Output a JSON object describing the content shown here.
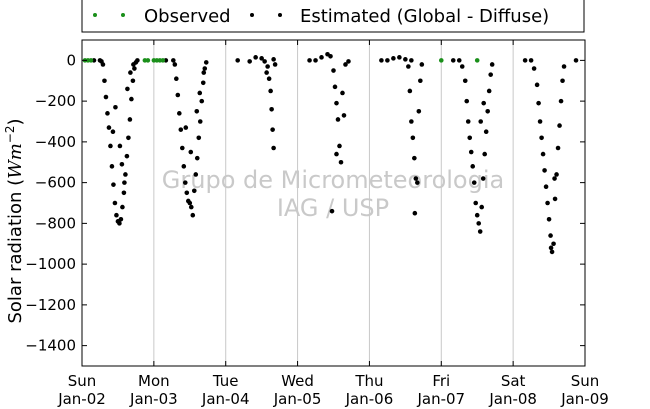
{
  "chart_data": {
    "type": "scatter",
    "title": "",
    "ylabel": "Solar radiation (Wm^-2)",
    "ylabel_parts": {
      "main": "Solar radiation ",
      "open": "(",
      "unit": "Wm",
      "exp": "−2",
      "close": ")"
    },
    "ylim": [
      -1500,
      100
    ],
    "yticks": [
      -1400,
      -1200,
      -1000,
      -800,
      -600,
      -400,
      -200,
      0
    ],
    "xlim": [
      "2000-01-02",
      "2000-01-09"
    ],
    "xticks": [
      {
        "day": "Sun",
        "date": "Jan-02"
      },
      {
        "day": "Mon",
        "date": "Jan-03"
      },
      {
        "day": "Tue",
        "date": "Jan-04"
      },
      {
        "day": "Wed",
        "date": "Jan-05"
      },
      {
        "day": "Thu",
        "date": "Jan-06"
      },
      {
        "day": "Fri",
        "date": "Jan-07"
      },
      {
        "day": "Sat",
        "date": "Jan-08"
      },
      {
        "day": "Sun",
        "date": "Jan-09"
      }
    ],
    "grid": "vertical",
    "legend_position": "top",
    "watermark": [
      "Grupo de Micrometeorologia",
      "IAG / USP"
    ],
    "colors": {
      "observed": "#1a8f1a",
      "estimated": "#000000",
      "grid": "#c8c8c8",
      "watermark": "#c9c9c9"
    },
    "series": [
      {
        "name": "Observed",
        "points": [
          [
            "2000-01-02T01:00",
            0
          ],
          [
            "2000-01-02T02:00",
            0
          ],
          [
            "2000-01-02T03:00",
            0
          ],
          [
            "2000-01-02T21:00",
            0
          ],
          [
            "2000-01-02T22:00",
            0
          ],
          [
            "2000-01-03T00:00",
            0
          ],
          [
            "2000-01-03T01:00",
            0
          ],
          [
            "2000-01-03T02:00",
            0
          ],
          [
            "2000-01-03T03:00",
            0
          ],
          [
            "2000-01-07T00:00",
            0
          ],
          [
            "2000-01-07T12:00",
            0
          ]
        ]
      },
      {
        "name": "Estimated (Global - Diffuse)",
        "points": [
          [
            "2000-01-02T06:00",
            0
          ],
          [
            "2000-01-02T06:30",
            -5
          ],
          [
            "2000-01-02T07:00",
            -20
          ],
          [
            "2000-01-02T07:30",
            -100
          ],
          [
            "2000-01-02T08:00",
            -180
          ],
          [
            "2000-01-02T08:30",
            -260
          ],
          [
            "2000-01-02T09:00",
            -330
          ],
          [
            "2000-01-02T09:30",
            -420
          ],
          [
            "2000-01-02T10:00",
            -520
          ],
          [
            "2000-01-02T10:30",
            -610
          ],
          [
            "2000-01-02T11:00",
            -700
          ],
          [
            "2000-01-02T11:30",
            -760
          ],
          [
            "2000-01-02T12:00",
            -790
          ],
          [
            "2000-01-02T12:30",
            -800
          ],
          [
            "2000-01-02T13:00",
            -780
          ],
          [
            "2000-01-02T13:30",
            -720
          ],
          [
            "2000-01-02T14:00",
            -650
          ],
          [
            "2000-01-02T14:30",
            -560
          ],
          [
            "2000-01-02T15:00",
            -470
          ],
          [
            "2000-01-02T15:30",
            -380
          ],
          [
            "2000-01-02T16:00",
            -290
          ],
          [
            "2000-01-02T16:30",
            -190
          ],
          [
            "2000-01-02T17:00",
            -100
          ],
          [
            "2000-01-02T17:30",
            -40
          ],
          [
            "2000-01-02T18:00",
            -10
          ],
          [
            "2000-01-02T18:30",
            0
          ],
          [
            "2000-01-02T10:20",
            -350
          ],
          [
            "2000-01-02T11:10",
            -230
          ],
          [
            "2000-01-02T12:40",
            -420
          ],
          [
            "2000-01-02T13:20",
            -510
          ],
          [
            "2000-01-02T14:10",
            -600
          ],
          [
            "2000-01-02T15:10",
            -140
          ],
          [
            "2000-01-02T16:10",
            -60
          ],
          [
            "2000-01-02T17:10",
            -20
          ],
          [
            "2000-01-03T06:30",
            0
          ],
          [
            "2000-01-03T07:00",
            -20
          ],
          [
            "2000-01-03T07:30",
            -90
          ],
          [
            "2000-01-03T08:00",
            -170
          ],
          [
            "2000-01-03T08:30",
            -260
          ],
          [
            "2000-01-03T09:00",
            -340
          ],
          [
            "2000-01-03T09:30",
            -430
          ],
          [
            "2000-01-03T10:00",
            -520
          ],
          [
            "2000-01-03T10:30",
            -600
          ],
          [
            "2000-01-03T11:00",
            -650
          ],
          [
            "2000-01-03T11:30",
            -690
          ],
          [
            "2000-01-03T12:00",
            -700
          ],
          [
            "2000-01-03T12:30",
            -720
          ],
          [
            "2000-01-03T13:00",
            -760
          ],
          [
            "2000-01-03T13:30",
            -640
          ],
          [
            "2000-01-03T14:00",
            -560
          ],
          [
            "2000-01-03T14:30",
            -480
          ],
          [
            "2000-01-03T15:00",
            -380
          ],
          [
            "2000-01-03T15:30",
            -300
          ],
          [
            "2000-01-03T16:00",
            -200
          ],
          [
            "2000-01-03T16:30",
            -110
          ],
          [
            "2000-01-03T17:00",
            -40
          ],
          [
            "2000-01-03T17:30",
            -10
          ],
          [
            "2000-01-03T10:40",
            -330
          ],
          [
            "2000-01-03T12:20",
            -450
          ],
          [
            "2000-01-03T14:20",
            -250
          ],
          [
            "2000-01-03T15:20",
            -160
          ],
          [
            "2000-01-03T16:40",
            -60
          ],
          [
            "2000-01-04T08:00",
            -5
          ],
          [
            "2000-01-04T12:00",
            10
          ],
          [
            "2000-01-04T16:00",
            5
          ],
          [
            "2000-01-04T13:00",
            -5
          ],
          [
            "2000-01-04T10:00",
            15
          ],
          [
            "2000-01-04T14:00",
            -30
          ],
          [
            "2000-01-04T14:30",
            -90
          ],
          [
            "2000-01-04T15:00",
            -150
          ],
          [
            "2000-01-04T15:20",
            -240
          ],
          [
            "2000-01-04T15:40",
            -340
          ],
          [
            "2000-01-04T16:00",
            -430
          ],
          [
            "2000-01-04T13:40",
            -60
          ],
          [
            "2000-01-04T16:30",
            -20
          ],
          [
            "2000-01-05T06:00",
            0
          ],
          [
            "2000-01-05T08:00",
            15
          ],
          [
            "2000-01-05T10:00",
            30
          ],
          [
            "2000-01-05T11:00",
            20
          ],
          [
            "2000-01-05T12:00",
            -50
          ],
          [
            "2000-01-05T12:30",
            -130
          ],
          [
            "2000-01-05T13:00",
            -210
          ],
          [
            "2000-01-05T13:30",
            -290
          ],
          [
            "2000-01-05T14:00",
            -420
          ],
          [
            "2000-01-05T13:00",
            -460
          ],
          [
            "2000-01-05T14:30",
            -500
          ],
          [
            "2000-01-05T15:00",
            -160
          ],
          [
            "2000-01-05T11:30",
            -740
          ],
          [
            "2000-01-05T15:30",
            -270
          ],
          [
            "2000-01-05T16:00",
            -20
          ],
          [
            "2000-01-05T17:00",
            -5
          ],
          [
            "2000-01-06T06:00",
            0
          ],
          [
            "2000-01-06T08:00",
            10
          ],
          [
            "2000-01-06T10:00",
            15
          ],
          [
            "2000-01-06T12:00",
            5
          ],
          [
            "2000-01-06T14:00",
            0
          ],
          [
            "2000-01-06T13:00",
            -30
          ],
          [
            "2000-01-06T13:30",
            -150
          ],
          [
            "2000-01-06T14:00",
            -300
          ],
          [
            "2000-01-06T14:30",
            -380
          ],
          [
            "2000-01-06T15:00",
            -480
          ],
          [
            "2000-01-06T15:30",
            -580
          ],
          [
            "2000-01-06T16:00",
            -600
          ],
          [
            "2000-01-06T15:10",
            -750
          ],
          [
            "2000-01-06T16:30",
            -250
          ],
          [
            "2000-01-06T17:00",
            -100
          ],
          [
            "2000-01-06T17:30",
            -20
          ],
          [
            "2000-01-07T06:00",
            0
          ],
          [
            "2000-01-07T07:00",
            -30
          ],
          [
            "2000-01-07T08:00",
            -100
          ],
          [
            "2000-01-07T08:30",
            -200
          ],
          [
            "2000-01-07T09:00",
            -300
          ],
          [
            "2000-01-07T09:30",
            -380
          ],
          [
            "2000-01-07T10:00",
            -450
          ],
          [
            "2000-01-07T10:30",
            -520
          ],
          [
            "2000-01-07T11:00",
            -600
          ],
          [
            "2000-01-07T11:30",
            -700
          ],
          [
            "2000-01-07T12:00",
            -760
          ],
          [
            "2000-01-07T12:30",
            -800
          ],
          [
            "2000-01-07T13:00",
            -840
          ],
          [
            "2000-01-07T13:30",
            -720
          ],
          [
            "2000-01-07T14:00",
            -580
          ],
          [
            "2000-01-07T14:30",
            -460
          ],
          [
            "2000-01-07T15:00",
            -350
          ],
          [
            "2000-01-07T15:30",
            -250
          ],
          [
            "2000-01-07T16:00",
            -150
          ],
          [
            "2000-01-07T16:30",
            -70
          ],
          [
            "2000-01-07T17:00",
            -20
          ],
          [
            "2000-01-07T13:10",
            -300
          ],
          [
            "2000-01-07T14:10",
            -210
          ],
          [
            "2000-01-08T06:00",
            0
          ],
          [
            "2000-01-08T07:00",
            -40
          ],
          [
            "2000-01-08T08:00",
            -120
          ],
          [
            "2000-01-08T08:30",
            -210
          ],
          [
            "2000-01-08T09:00",
            -300
          ],
          [
            "2000-01-08T09:30",
            -380
          ],
          [
            "2000-01-08T10:00",
            -460
          ],
          [
            "2000-01-08T10:30",
            -540
          ],
          [
            "2000-01-08T11:00",
            -620
          ],
          [
            "2000-01-08T11:30",
            -700
          ],
          [
            "2000-01-08T12:00",
            -780
          ],
          [
            "2000-01-08T12:30",
            -860
          ],
          [
            "2000-01-08T13:00",
            -940
          ],
          [
            "2000-01-08T13:30",
            -900
          ],
          [
            "2000-01-08T14:00",
            -680
          ],
          [
            "2000-01-08T14:30",
            -560
          ],
          [
            "2000-01-08T15:00",
            -430
          ],
          [
            "2000-01-08T15:30",
            -320
          ],
          [
            "2000-01-08T16:00",
            -200
          ],
          [
            "2000-01-08T16:30",
            -100
          ],
          [
            "2000-01-08T17:00",
            -30
          ],
          [
            "2000-01-08T12:40",
            -920
          ],
          [
            "2000-01-08T13:50",
            -580
          ],
          [
            "2000-01-02T04:00",
            0
          ],
          [
            "2000-01-03T04:00",
            0
          ],
          [
            "2000-01-04T04:00",
            0
          ],
          [
            "2000-01-05T04:00",
            0
          ],
          [
            "2000-01-06T04:00",
            0
          ],
          [
            "2000-01-07T04:00",
            0
          ],
          [
            "2000-01-08T04:00",
            0
          ],
          [
            "2000-01-08T21:00",
            0
          ]
        ]
      }
    ]
  }
}
